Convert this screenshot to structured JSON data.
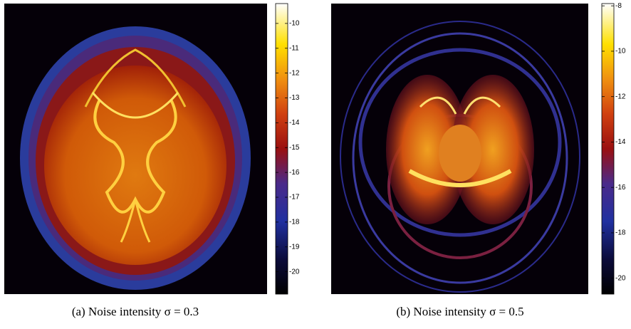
{
  "panels": [
    {
      "caption": "(a)  Noise intensity σ = 0.3",
      "colorbar": {
        "lim": [
          -20.9,
          -9.2
        ],
        "ticks": [
          -10,
          -11,
          -12,
          -13,
          -14,
          -15,
          -16,
          -17,
          -18,
          -19,
          -20
        ]
      }
    },
    {
      "caption": "(b)  Noise intensity σ = 0.5",
      "colorbar": {
        "lim": [
          -20.7,
          -7.9
        ],
        "ticks": [
          -8,
          -10,
          -12,
          -14,
          -16,
          -18,
          -20
        ]
      }
    }
  ]
}
